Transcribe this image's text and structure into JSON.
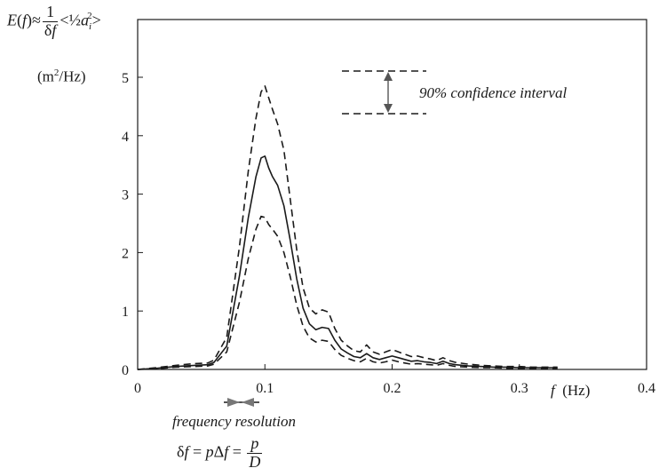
{
  "chart_data": {
    "type": "line",
    "xlim": [
      0,
      0.4
    ],
    "ylim": [
      0,
      5
    ],
    "x_ticks": [
      "0",
      "0.1",
      "0.2",
      "0.3",
      "0.4"
    ],
    "y_ticks": [
      "0",
      "1",
      "2",
      "3",
      "4",
      "5"
    ],
    "ylabel": "E(f) ≈ 1/δf <½ a_i²>",
    "yunit": "(m²/Hz)",
    "xlabel": "f (Hz)",
    "series": [
      {
        "style": "solid",
        "x": [
          0,
          0.015,
          0.03,
          0.045,
          0.055,
          0.06,
          0.07,
          0.08,
          0.087,
          0.093,
          0.097,
          0.1,
          0.103,
          0.106,
          0.11,
          0.115,
          0.12,
          0.125,
          0.13,
          0.135,
          0.14,
          0.145,
          0.15,
          0.155,
          0.16,
          0.165,
          0.17,
          0.175,
          0.18,
          0.185,
          0.19,
          0.195,
          0.2,
          0.205,
          0.21,
          0.215,
          0.22,
          0.225,
          0.23,
          0.235,
          0.24,
          0.245,
          0.25,
          0.26,
          0.27,
          0.28,
          0.29,
          0.3,
          0.31,
          0.32,
          0.33
        ],
        "y": [
          0,
          0.02,
          0.05,
          0.07,
          0.08,
          0.12,
          0.4,
          1.6,
          2.6,
          3.3,
          3.62,
          3.65,
          3.45,
          3.3,
          3.15,
          2.8,
          2.2,
          1.55,
          1.05,
          0.78,
          0.68,
          0.72,
          0.7,
          0.5,
          0.35,
          0.28,
          0.22,
          0.2,
          0.27,
          0.2,
          0.17,
          0.2,
          0.23,
          0.2,
          0.17,
          0.14,
          0.15,
          0.13,
          0.12,
          0.1,
          0.14,
          0.1,
          0.08,
          0.06,
          0.05,
          0.04,
          0.04,
          0.03,
          0.03,
          0.03,
          0.03
        ]
      },
      {
        "style": "dashed",
        "x": [
          0,
          0.015,
          0.03,
          0.045,
          0.055,
          0.06,
          0.07,
          0.08,
          0.087,
          0.093,
          0.097,
          0.1,
          0.103,
          0.106,
          0.11,
          0.115,
          0.12,
          0.125,
          0.13,
          0.135,
          0.14,
          0.145,
          0.15,
          0.155,
          0.16,
          0.165,
          0.17,
          0.175,
          0.18,
          0.185,
          0.19,
          0.195,
          0.2,
          0.205,
          0.21,
          0.215,
          0.22,
          0.225,
          0.23,
          0.235,
          0.24,
          0.245,
          0.25,
          0.26,
          0.27,
          0.28,
          0.29,
          0.3,
          0.31,
          0.32,
          0.33
        ],
        "y": [
          0,
          0.03,
          0.07,
          0.1,
          0.11,
          0.16,
          0.55,
          2.1,
          3.4,
          4.3,
          4.75,
          4.85,
          4.65,
          4.45,
          4.2,
          3.75,
          2.9,
          2.05,
          1.4,
          1.05,
          0.95,
          1.02,
          0.98,
          0.7,
          0.5,
          0.4,
          0.32,
          0.3,
          0.42,
          0.3,
          0.26,
          0.3,
          0.34,
          0.3,
          0.26,
          0.22,
          0.23,
          0.2,
          0.18,
          0.15,
          0.2,
          0.15,
          0.12,
          0.09,
          0.07,
          0.06,
          0.05,
          0.05,
          0.04,
          0.04,
          0.04
        ]
      },
      {
        "style": "dashed",
        "x": [
          0,
          0.015,
          0.03,
          0.045,
          0.055,
          0.06,
          0.07,
          0.08,
          0.087,
          0.093,
          0.097,
          0.1,
          0.103,
          0.106,
          0.11,
          0.115,
          0.12,
          0.125,
          0.13,
          0.135,
          0.14,
          0.145,
          0.15,
          0.155,
          0.16,
          0.165,
          0.17,
          0.175,
          0.18,
          0.185,
          0.19,
          0.195,
          0.2,
          0.205,
          0.21,
          0.215,
          0.22,
          0.225,
          0.23,
          0.235,
          0.24,
          0.245,
          0.25,
          0.26,
          0.27,
          0.28,
          0.29,
          0.3,
          0.31,
          0.32,
          0.33
        ],
        "y": [
          0,
          0.01,
          0.04,
          0.05,
          0.06,
          0.09,
          0.3,
          1.15,
          1.9,
          2.4,
          2.62,
          2.6,
          2.48,
          2.4,
          2.28,
          2.0,
          1.58,
          1.1,
          0.74,
          0.54,
          0.47,
          0.5,
          0.48,
          0.34,
          0.24,
          0.19,
          0.15,
          0.13,
          0.19,
          0.13,
          0.11,
          0.13,
          0.16,
          0.13,
          0.11,
          0.09,
          0.1,
          0.09,
          0.08,
          0.07,
          0.1,
          0.07,
          0.05,
          0.04,
          0.03,
          0.03,
          0.02,
          0.02,
          0.02,
          0.02,
          0.02
        ]
      }
    ],
    "annotations": {
      "confidence_interval": "90% confidence interval",
      "resolution_label": "frequency resolution",
      "resolution_formula": "δf = pΔf = p/D"
    }
  }
}
